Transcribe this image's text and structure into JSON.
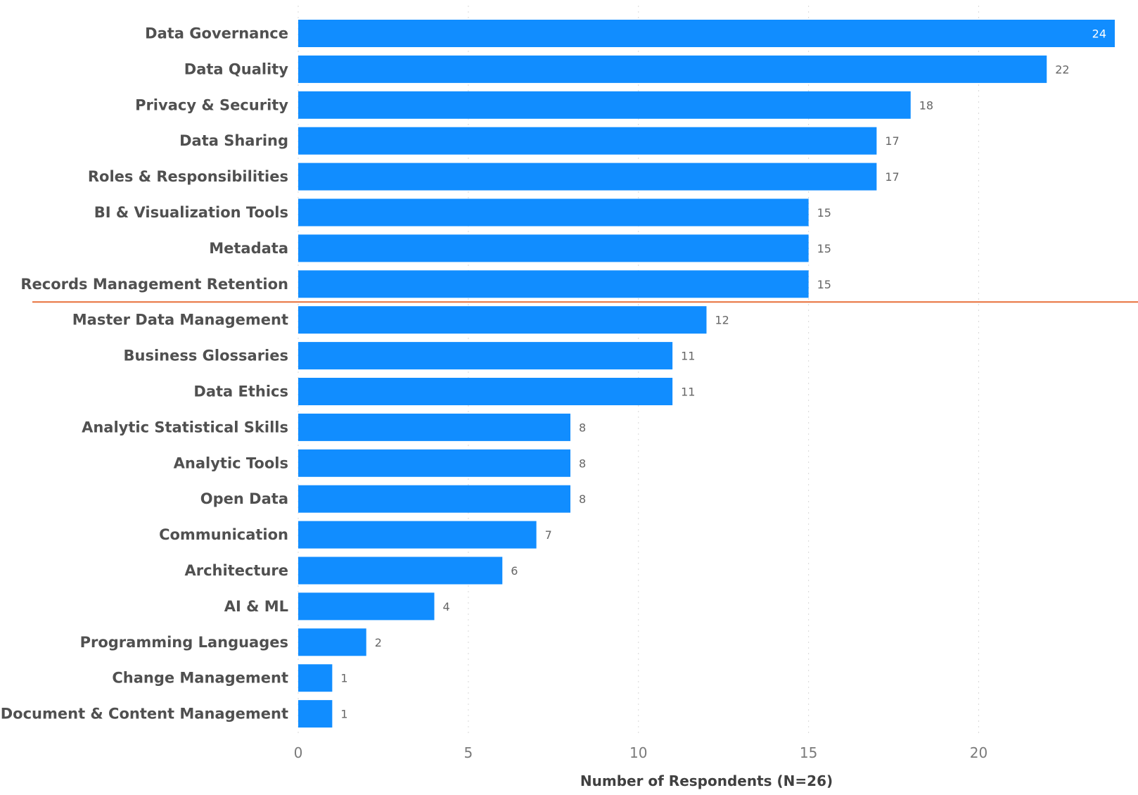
{
  "chart_data": {
    "type": "bar",
    "orientation": "horizontal",
    "categories": [
      "Data Governance",
      "Data Quality",
      "Privacy & Security",
      "Data Sharing",
      "Roles & Responsibilities",
      "BI & Visualization Tools",
      "Metadata",
      "Records Management Retention",
      "Master Data Management",
      "Business Glossaries",
      "Data Ethics",
      "Analytic Statistical Skills",
      "Analytic Tools",
      "Open Data",
      "Communication",
      "Architecture",
      "AI & ML",
      "Programming Languages",
      "Change Management",
      "Document & Content Management"
    ],
    "values": [
      24,
      22,
      18,
      17,
      17,
      15,
      15,
      15,
      12,
      11,
      11,
      8,
      8,
      8,
      7,
      6,
      4,
      2,
      1,
      1
    ],
    "xlabel": "Number of Respondents (N=26)",
    "ylabel": "",
    "xlim": [
      0,
      24
    ],
    "xticks": [
      0,
      5,
      10,
      15,
      20
    ],
    "grid": "vertical dotted",
    "reference_line_after_category": "Records Management Retention",
    "colors": {
      "bar": "#118dff",
      "reference_line": "#e8703a"
    }
  }
}
